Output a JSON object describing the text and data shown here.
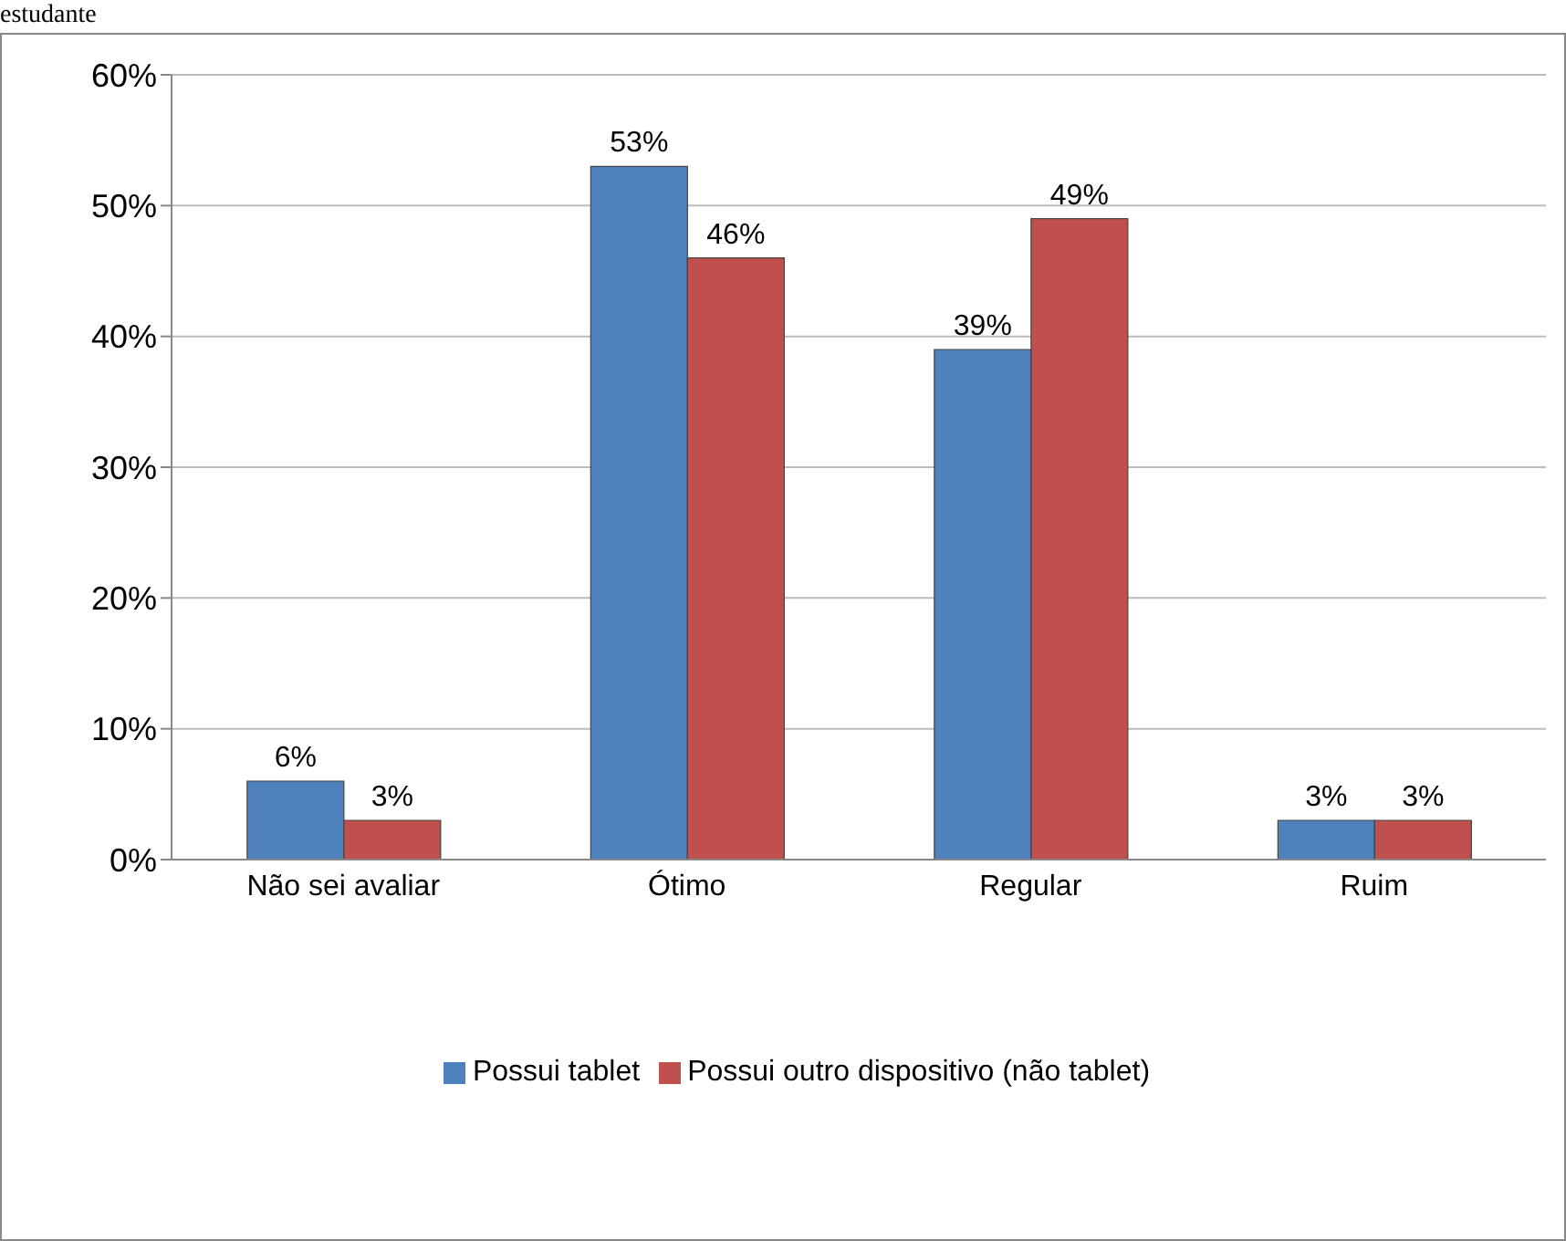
{
  "chart_data": {
    "type": "bar",
    "title": "estudante",
    "categories": [
      "Não sei avaliar",
      "Ótimo",
      "Regular",
      "Ruim"
    ],
    "series": [
      {
        "name": "Possui tablet",
        "color": "#4f81bd",
        "values": [
          6,
          53,
          39,
          3
        ],
        "value_labels": [
          "6%",
          "53%",
          "39%",
          "3%"
        ]
      },
      {
        "name": "Possui outro dispositivo (não tablet)",
        "color": "#c0504d",
        "values": [
          3,
          46,
          49,
          3
        ],
        "value_labels": [
          "3%",
          "46%",
          "49%",
          "3%"
        ]
      }
    ],
    "ylim": [
      0,
      60
    ],
    "yticks": [
      {
        "value": 0,
        "label": "0%"
      },
      {
        "value": 10,
        "label": "10%"
      },
      {
        "value": 20,
        "label": "20%"
      },
      {
        "value": 30,
        "label": "30%"
      },
      {
        "value": 40,
        "label": "40%"
      },
      {
        "value": 50,
        "label": "50%"
      },
      {
        "value": 60,
        "label": "60%"
      }
    ],
    "grid": "y",
    "legend": "bottom"
  }
}
